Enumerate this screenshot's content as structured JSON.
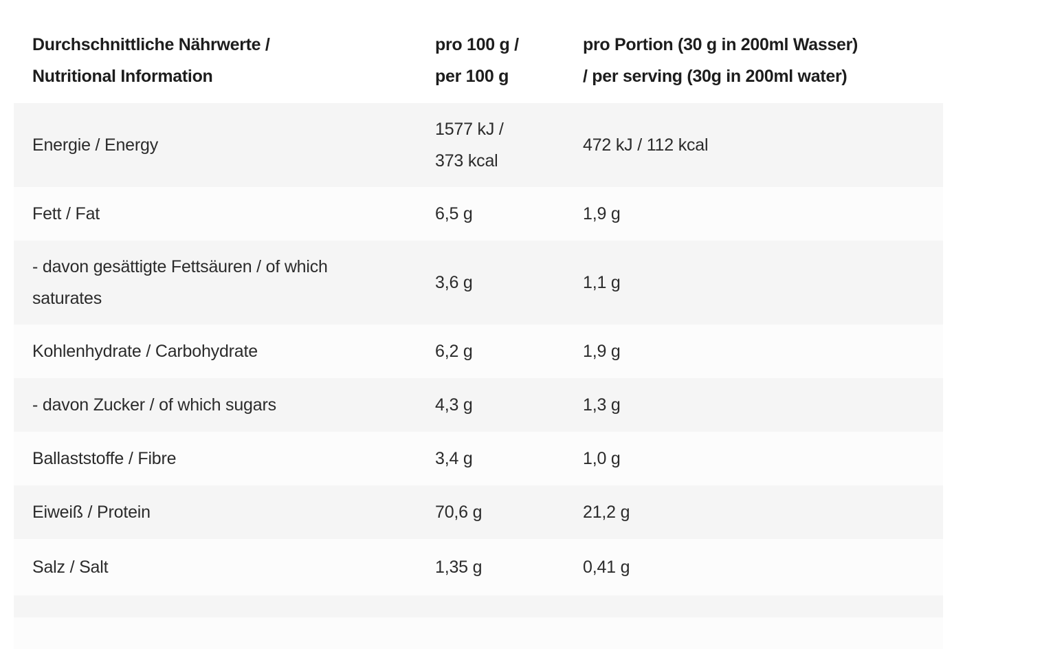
{
  "table": {
    "header": {
      "nutrient": "Durchschnittliche Nährwerte /\nNutritional Information",
      "per_100g": "pro 100 g /\nper 100 g",
      "per_serving": "pro Portion (30 g in 200ml Wasser)\n/ per serving (30g in 200ml water)"
    },
    "rows": [
      {
        "label": "Energie / Energy",
        "per_100g": "1577 kJ /\n373 kcal",
        "per_serving": "472 kJ / 112 kcal"
      },
      {
        "label": "Fett / Fat",
        "per_100g": "6,5 g",
        "per_serving": "1,9 g"
      },
      {
        "label": "- davon gesättigte Fettsäuren / of which\nsaturates",
        "per_100g": "3,6 g",
        "per_serving": "1,1 g"
      },
      {
        "label": "Kohlenhydrate / Carbohydrate",
        "per_100g": "6,2 g",
        "per_serving": "1,9 g"
      },
      {
        "label": "- davon Zucker / of which sugars",
        "per_100g": "4,3 g",
        "per_serving": "1,3 g"
      },
      {
        "label": "Ballaststoffe / Fibre",
        "per_100g": "3,4 g",
        "per_serving": "1,0 g"
      },
      {
        "label": "Eiweiß / Protein",
        "per_100g": "70,6 g",
        "per_serving": "21,2 g"
      },
      {
        "label": "Salz / Salt",
        "per_100g": "1,35 g",
        "per_serving": "0,41 g"
      },
      {
        "label": "",
        "per_100g": "",
        "per_serving": ""
      },
      {
        "label": "",
        "per_100g": "",
        "per_serving": ""
      }
    ],
    "colors": {
      "row_shaded": "#f5f5f5",
      "row_plain": "#fcfcfc",
      "header_text": "#1d1d1d",
      "body_text": "#2b2b2b",
      "page_background": "#ffffff"
    }
  }
}
